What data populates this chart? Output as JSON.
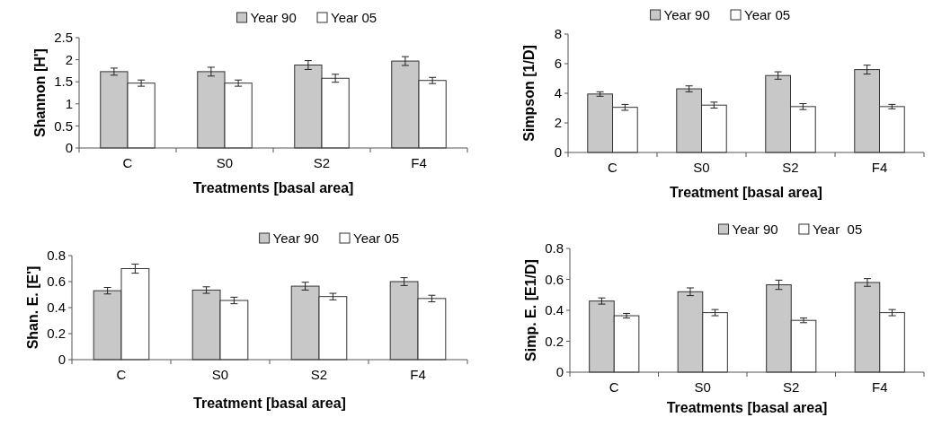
{
  "chart_data": [
    {
      "type": "bar",
      "ylabel": "Shannon [H']",
      "xlabel": "Treatments [basal area]",
      "categories": [
        "C",
        "S0",
        "S2",
        "F4"
      ],
      "ylim": [
        0,
        2.5
      ],
      "yticks": [
        0,
        0.5,
        1,
        1.5,
        2,
        2.5
      ],
      "legend": "top",
      "series": [
        {
          "name": "Year 90",
          "color": "#c8c8c8",
          "values": [
            1.73,
            1.73,
            1.88,
            1.97
          ],
          "errors": [
            0.08,
            0.1,
            0.1,
            0.1
          ]
        },
        {
          "name": "Year 05",
          "color": "#ffffff",
          "values": [
            1.47,
            1.47,
            1.58,
            1.53
          ],
          "errors": [
            0.07,
            0.07,
            0.09,
            0.07
          ]
        }
      ]
    },
    {
      "type": "bar",
      "ylabel": "Simpson [1/D]",
      "xlabel": "Treatment [basal area]",
      "categories": [
        "C",
        "S0",
        "S2",
        "F4"
      ],
      "ylim": [
        0,
        8
      ],
      "yticks": [
        0,
        2,
        4,
        6,
        8
      ],
      "legend": "top",
      "series": [
        {
          "name": "Year 90",
          "color": "#c8c8c8",
          "values": [
            3.95,
            4.3,
            5.2,
            5.6
          ],
          "errors": [
            0.15,
            0.2,
            0.25,
            0.3
          ]
        },
        {
          "name": "Year 05",
          "color": "#ffffff",
          "values": [
            3.05,
            3.2,
            3.1,
            3.1
          ],
          "errors": [
            0.2,
            0.2,
            0.2,
            0.15
          ]
        }
      ]
    },
    {
      "type": "bar",
      "ylabel": "Shan. E. [E']",
      "xlabel": "Treatment [basal area]",
      "categories": [
        "C",
        "S0",
        "S2",
        "F4"
      ],
      "ylim": [
        0,
        0.8
      ],
      "yticks": [
        0,
        0.2,
        0.4,
        0.6,
        0.8
      ],
      "legend": "top",
      "series": [
        {
          "name": "Year 90",
          "color": "#c8c8c8",
          "values": [
            0.53,
            0.535,
            0.565,
            0.6
          ],
          "errors": [
            0.025,
            0.025,
            0.03,
            0.03
          ]
        },
        {
          "name": "Year 05",
          "color": "#ffffff",
          "values": [
            0.7,
            0.455,
            0.485,
            0.47
          ],
          "errors": [
            0.035,
            0.025,
            0.025,
            0.025
          ]
        }
      ]
    },
    {
      "type": "bar",
      "ylabel": "Simp. E. [E1/D]",
      "xlabel": "Treatments [basal area]",
      "categories": [
        "C",
        "S0",
        "S2",
        "F4"
      ],
      "ylim": [
        0,
        0.8
      ],
      "yticks": [
        0,
        0.2,
        0.4,
        0.6,
        0.8
      ],
      "legend": "top",
      "series": [
        {
          "name": "Year 90",
          "color": "#c8c8c8",
          "values": [
            0.46,
            0.52,
            0.565,
            0.58
          ],
          "errors": [
            0.02,
            0.025,
            0.03,
            0.025
          ]
        },
        {
          "name": "Year  05",
          "color": "#ffffff",
          "values": [
            0.365,
            0.385,
            0.335,
            0.385
          ],
          "errors": [
            0.015,
            0.02,
            0.015,
            0.02
          ]
        }
      ]
    }
  ]
}
